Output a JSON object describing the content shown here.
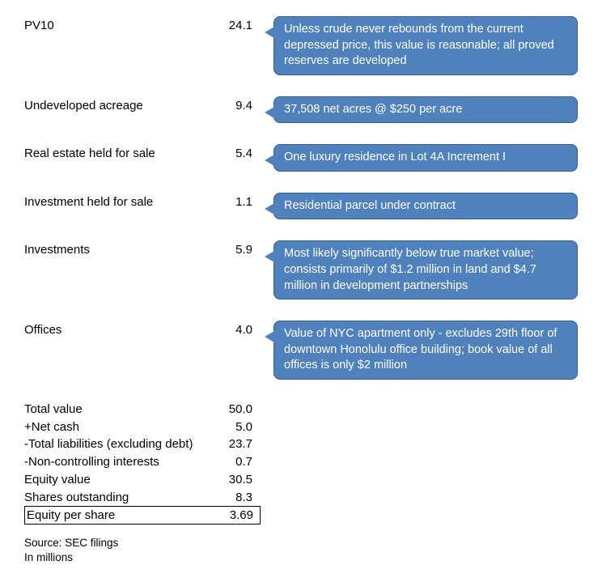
{
  "items": [
    {
      "label": "PV10",
      "value": "24.1",
      "note": "Unless crude never rebounds from the current depressed price, this value is reasonable; all proved reserves are developed",
      "tall": true
    },
    {
      "label": "Undeveloped acreage",
      "value": "9.4",
      "note": "37,508 net acres @ $250 per acre",
      "tall": false
    },
    {
      "label": "Real estate held for sale",
      "value": "5.4",
      "note": "One luxury residence in Lot 4A Increment I",
      "tall": false
    },
    {
      "label": "Investment held for sale",
      "value": "1.1",
      "note": "Residential parcel under contract",
      "tall": false
    },
    {
      "label": "Investments",
      "value": "5.9",
      "note": "Most likely significantly below true market value; consists primarily of $1.2 million in land and $4.7 million in development partnerships",
      "tall": true
    },
    {
      "label": "Offices",
      "value": "4.0",
      "note": "Value of NYC apartment only - excludes 29th floor of downtown Honolulu office building; book value of all offices is only $2 million",
      "tall": true
    }
  ],
  "summary": [
    {
      "label": "Total value",
      "value": "50.0"
    },
    {
      "label": "+Net cash",
      "value": "5.0"
    },
    {
      "label": "-Total liabilities (excluding debt)",
      "value": "23.7"
    },
    {
      "label": "-Non-controlling interests",
      "value": "0.7"
    },
    {
      "label": "Equity value",
      "value": "30.5"
    },
    {
      "label": "Shares outstanding",
      "value": "8.3"
    }
  ],
  "boxed": {
    "label": "Equity per share",
    "value": "3.69"
  },
  "footnote": {
    "source": "Source: SEC filings",
    "units": "In millions"
  },
  "style": {
    "callout_bg": "#4f81bd",
    "callout_border": "#385d8a",
    "callout_text": "#ffffff",
    "body_font_size": 15,
    "callout_font_size": 14.5,
    "footnote_font_size": 13.5
  }
}
